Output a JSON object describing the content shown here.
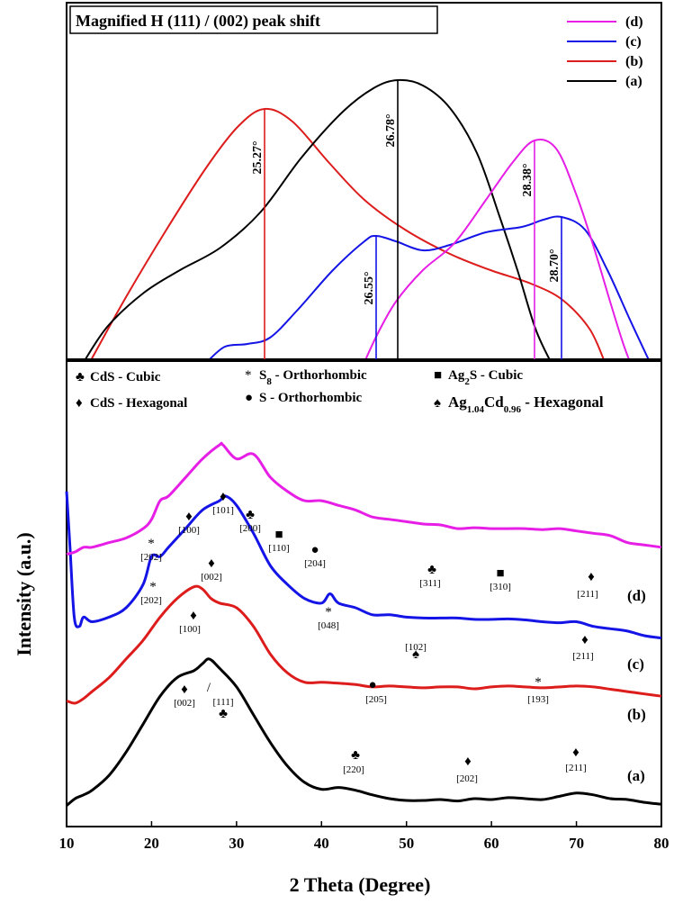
{
  "chart_data": [
    {
      "type": "line",
      "title": "Magnified H (111) / (002) peak shift",
      "legend_position": "top-right",
      "legend": [
        "(d)",
        "(c)",
        "(b)",
        "(a)"
      ],
      "colors": {
        "a": "#000000",
        "b": "#dd1c1c",
        "c": "#1414e6",
        "d": "#e61ee6"
      },
      "peak_labels": {
        "a": "26.78°",
        "b": "25.27°",
        "c1": "26.55°",
        "c2": "28.70°",
        "d": "28.38°"
      },
      "peaks_deg": {
        "a": 26.78,
        "b": 25.27,
        "c": [
          26.55,
          28.7
        ],
        "d": 28.38
      },
      "axes_shown": false,
      "grid": false
    },
    {
      "type": "line",
      "xlabel": "2 Theta (Degree)",
      "ylabel": "Intensity (a.u.)",
      "xlim": [
        10,
        80
      ],
      "x_ticks": [
        "10",
        "20",
        "30",
        "40",
        "50",
        "60",
        "70",
        "80"
      ],
      "y_ticks": false,
      "grid": false,
      "series": [
        {
          "name": "(a)",
          "color": "#000000",
          "offset": 0.04,
          "x": [
            10,
            11,
            12,
            13,
            15,
            17,
            19,
            21,
            23,
            25,
            26,
            26.8,
            28,
            30,
            32,
            34,
            36,
            38,
            40,
            42,
            44,
            46,
            48,
            50,
            52,
            54,
            56,
            58,
            60,
            62,
            64,
            66,
            68,
            70,
            72,
            74,
            76,
            78,
            80
          ],
          "y": [
            0.045,
            0.06,
            0.068,
            0.078,
            0.11,
            0.16,
            0.22,
            0.28,
            0.32,
            0.335,
            0.35,
            0.36,
            0.34,
            0.3,
            0.24,
            0.18,
            0.13,
            0.095,
            0.08,
            0.084,
            0.078,
            0.068,
            0.06,
            0.056,
            0.056,
            0.058,
            0.055,
            0.06,
            0.058,
            0.062,
            0.06,
            0.058,
            0.065,
            0.072,
            0.068,
            0.06,
            0.058,
            0.052,
            0.048
          ]
        },
        {
          "name": "(b)",
          "color": "#dd1c1c",
          "offset": 0.27,
          "x": [
            10,
            11,
            12,
            13,
            15,
            17,
            19,
            21,
            23,
            25,
            26,
            27,
            28,
            30,
            32,
            34,
            36,
            38,
            40,
            42,
            44,
            46,
            48,
            50,
            52,
            54,
            56,
            58,
            60,
            62,
            64,
            66,
            68,
            70,
            72,
            74,
            76,
            78,
            80
          ],
          "y": [
            0.27,
            0.265,
            0.275,
            0.29,
            0.32,
            0.36,
            0.4,
            0.45,
            0.49,
            0.515,
            0.51,
            0.49,
            0.48,
            0.47,
            0.43,
            0.37,
            0.33,
            0.31,
            0.31,
            0.308,
            0.305,
            0.3,
            0.302,
            0.3,
            0.298,
            0.3,
            0.3,
            0.296,
            0.3,
            0.302,
            0.3,
            0.298,
            0.3,
            0.302,
            0.3,
            0.295,
            0.29,
            0.285,
            0.28
          ]
        },
        {
          "name": "(c)",
          "color": "#1414e6",
          "offset": 0.44,
          "x": [
            10,
            10.4,
            10.9,
            11.5,
            12,
            13,
            15,
            17,
            19,
            20,
            21,
            22,
            24,
            26,
            28,
            28.7,
            30,
            32,
            34,
            36,
            38,
            40,
            41,
            42,
            44,
            46,
            48,
            50,
            52,
            54,
            56,
            58,
            60,
            62,
            64,
            66,
            68,
            70,
            72,
            74,
            76,
            78,
            80
          ],
          "y": [
            0.72,
            0.6,
            0.45,
            0.43,
            0.45,
            0.44,
            0.45,
            0.47,
            0.52,
            0.58,
            0.58,
            0.6,
            0.64,
            0.68,
            0.7,
            0.71,
            0.69,
            0.63,
            0.56,
            0.52,
            0.49,
            0.48,
            0.5,
            0.48,
            0.47,
            0.455,
            0.455,
            0.45,
            0.448,
            0.448,
            0.448,
            0.445,
            0.445,
            0.446,
            0.444,
            0.44,
            0.438,
            0.44,
            0.43,
            0.425,
            0.42,
            0.41,
            0.405
          ]
        },
        {
          "name": "(d)",
          "color": "#e61ee6",
          "offset": 0.58,
          "x": [
            10,
            11,
            12,
            13,
            15,
            17,
            19,
            20,
            21,
            22,
            24,
            26,
            28,
            28.4,
            30,
            32,
            34,
            36,
            38,
            40,
            42,
            44,
            46,
            48,
            50,
            52,
            54,
            56,
            58,
            60,
            62,
            64,
            66,
            68,
            70,
            72,
            74,
            76,
            78,
            80
          ],
          "y": [
            0.585,
            0.59,
            0.6,
            0.6,
            0.61,
            0.62,
            0.64,
            0.66,
            0.7,
            0.71,
            0.75,
            0.79,
            0.82,
            0.82,
            0.79,
            0.8,
            0.75,
            0.72,
            0.7,
            0.7,
            0.69,
            0.68,
            0.665,
            0.66,
            0.655,
            0.65,
            0.648,
            0.64,
            0.642,
            0.64,
            0.64,
            0.64,
            0.638,
            0.64,
            0.635,
            0.63,
            0.625,
            0.61,
            0.605,
            0.6
          ]
        }
      ],
      "curve_labels": [
        {
          "text": "(d)",
          "color": "#000000"
        },
        {
          "text": "(c)",
          "color": "#000000"
        },
        {
          "text": "(b)",
          "color": "#000000"
        },
        {
          "text": "(a)",
          "color": "#000000"
        }
      ],
      "phase_legend": [
        {
          "symbol": "♣",
          "text": "CdS - Cubic"
        },
        {
          "symbol": "♦",
          "text": "CdS - Hexagonal"
        },
        {
          "symbol": "*",
          "text": "S",
          "sub": "8",
          "text2": " - Orthorhombic"
        },
        {
          "symbol": "●",
          "text": "S - Orthorhombic"
        },
        {
          "symbol": "■",
          "text": "Ag",
          "sub": "2",
          "text2": "S - Cubic"
        },
        {
          "symbol": "♠",
          "text": "Ag",
          "sub": "1.04",
          "text2": "Cd",
          "sub2": "0.96",
          "text3": " - Hexagonal"
        }
      ],
      "peak_annotations": [
        {
          "symbol": "*",
          "label": "[202]"
        },
        {
          "symbol": "♦",
          "label": "[100]"
        },
        {
          "symbol": "♦",
          "label": "[101]"
        },
        {
          "symbol": "♣",
          "label": "[200]"
        },
        {
          "symbol": "■",
          "label": "[110]"
        },
        {
          "symbol": "●",
          "label": "[204]"
        },
        {
          "symbol": "♣",
          "label": "[311]"
        },
        {
          "symbol": "■",
          "label": "[310]"
        },
        {
          "symbol": "♦",
          "label": "[211]"
        },
        {
          "symbol": "*",
          "label": "[202]"
        },
        {
          "symbol": "♦",
          "label": "[002]"
        },
        {
          "symbol": "*",
          "label": "[048]"
        },
        {
          "symbol": "♠",
          "label": "[102]"
        },
        {
          "symbol": "♦",
          "label": "[211]"
        },
        {
          "symbol": "♦",
          "label": "[100]"
        },
        {
          "symbol": "♦",
          "label": "[002]"
        },
        {
          "symbol": "/",
          "label": ""
        },
        {
          "symbol": "♣",
          "label": "[111]"
        },
        {
          "symbol": "●",
          "label": "[205]"
        },
        {
          "symbol": "*",
          "label": "[193]"
        },
        {
          "symbol": "♣",
          "label": "[220]"
        },
        {
          "symbol": "♦",
          "label": "[202]"
        },
        {
          "symbol": "♦",
          "label": "[211]"
        }
      ]
    }
  ]
}
